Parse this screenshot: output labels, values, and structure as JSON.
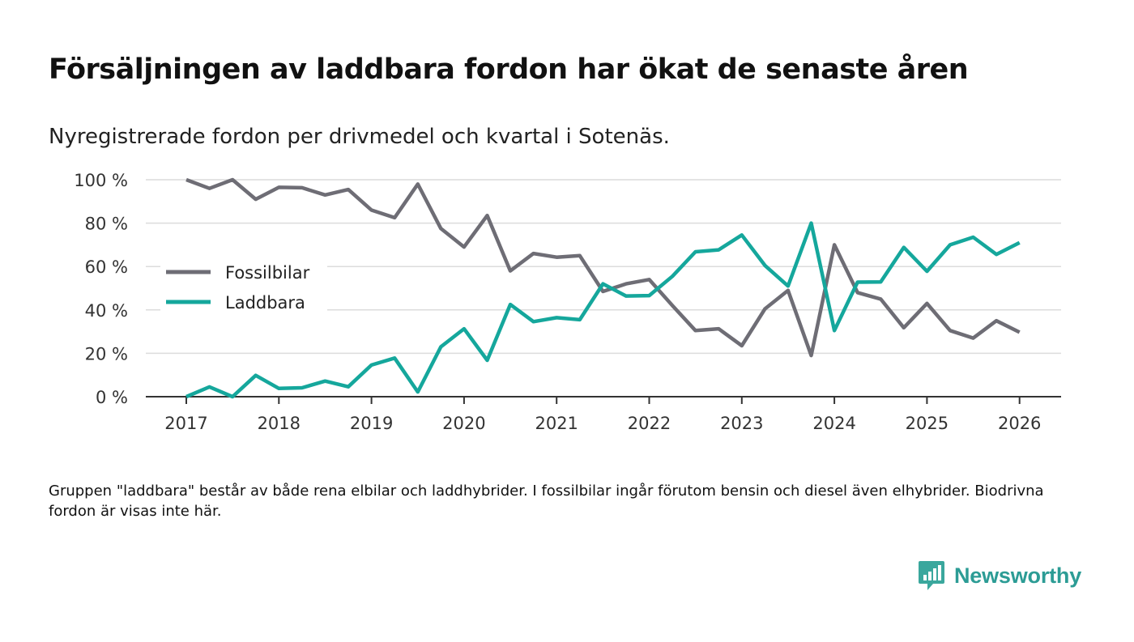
{
  "title": "Försäljningen av laddbara fordon har ökat de senaste åren",
  "subtitle": "Nyregistrerade fordon per drivmedel och kvartal i Sotenäs.",
  "footnote": "Gruppen \"laddbara\" består av både rena elbilar och laddhybrider. I fossilbilar ingår förutom bensin och diesel även elhybrider. Biodrivna fordon är visas inte här.",
  "brand": {
    "name": "Newsworthy",
    "color": "#2c9c95"
  },
  "chart_data": {
    "type": "line",
    "title": "Försäljningen av laddbara fordon har ökat de senaste åren",
    "xlabel": "",
    "ylabel": "",
    "ylim": [
      0,
      100
    ],
    "xlim": [
      2017,
      2026.25
    ],
    "grid": true,
    "legend_position": "left",
    "y_ticks": [
      {
        "value": 0,
        "label": "0 %"
      },
      {
        "value": 20,
        "label": "20 %"
      },
      {
        "value": 40,
        "label": "40 %"
      },
      {
        "value": 60,
        "label": "60 %"
      },
      {
        "value": 80,
        "label": "80 %"
      },
      {
        "value": 100,
        "label": "100 %"
      }
    ],
    "x_ticks": [
      {
        "value": 2017,
        "label": "2017"
      },
      {
        "value": 2018,
        "label": "2018"
      },
      {
        "value": 2019,
        "label": "2019"
      },
      {
        "value": 2020,
        "label": "2020"
      },
      {
        "value": 2021,
        "label": "2021"
      },
      {
        "value": 2022,
        "label": "2022"
      },
      {
        "value": 2023,
        "label": "2023"
      },
      {
        "value": 2024,
        "label": "2024"
      },
      {
        "value": 2025,
        "label": "2025"
      },
      {
        "value": 2026,
        "label": "2026"
      }
    ],
    "x": [
      2017,
      2017.25,
      2017.5,
      2017.75,
      2018,
      2018.25,
      2018.5,
      2018.75,
      2019,
      2019.25,
      2019.5,
      2019.75,
      2020,
      2020.25,
      2020.5,
      2020.75,
      2021,
      2021.25,
      2021.5,
      2021.75,
      2022,
      2022.25,
      2022.5,
      2022.75,
      2023,
      2023.25,
      2023.5,
      2023.75,
      2024,
      2024.25,
      2024.5,
      2024.75,
      2025,
      2025.25,
      2025.5,
      2025.75,
      2026
    ],
    "series": [
      {
        "name": "Fossilbilar",
        "color": "#6e6d75",
        "values": [
          100,
          96,
          100,
          91,
          96.5,
          96.3,
          93,
          95.5,
          86,
          82.5,
          98,
          77.5,
          69,
          83.5,
          58,
          66,
          64.3,
          65,
          48.5,
          52,
          54,
          42,
          30.5,
          31.3,
          23.5,
          40.5,
          49,
          19,
          70,
          48,
          45,
          31.8,
          43,
          30.5,
          27,
          35,
          29.7
        ]
      },
      {
        "name": "Laddbara",
        "color": "#15a79c",
        "values": [
          0,
          4.5,
          0,
          9.8,
          3.8,
          4.1,
          7.2,
          4.6,
          14.6,
          17.8,
          2.2,
          23,
          31.3,
          16.8,
          42.5,
          34.6,
          36.4,
          35.5,
          52,
          46.4,
          46.6,
          55.5,
          66.8,
          67.7,
          74.5,
          60.5,
          51,
          80,
          30.5,
          52.8,
          52.9,
          68.8,
          57.8,
          70,
          73.5,
          65.6,
          71
        ]
      }
    ]
  }
}
